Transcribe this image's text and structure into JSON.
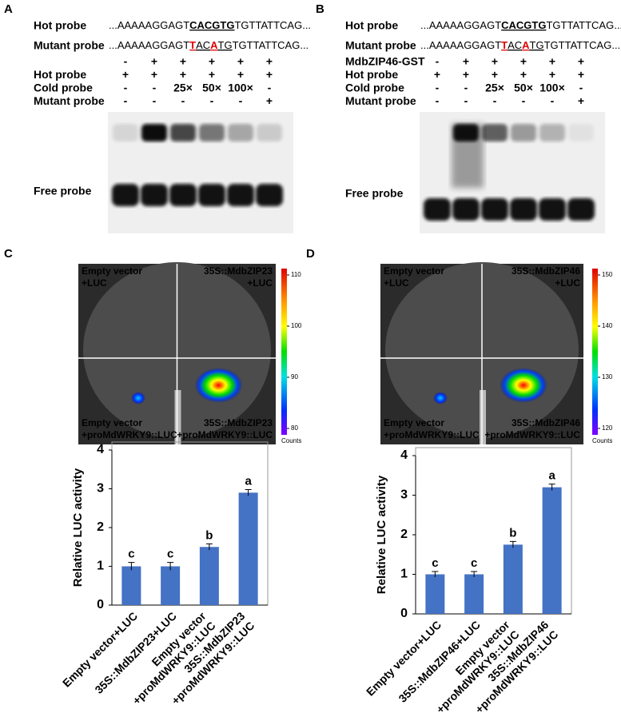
{
  "panels": [
    {
      "label": "A",
      "hot_probe_label": "Hot probe",
      "hot_sequence": [
        "...AAAAAGGAGT",
        "CACGTG",
        "TGTTATTCAG..."
      ],
      "mutant_probe_label": "Mutant probe",
      "mutant_sequence": [
        "...AAAAAGGAGT",
        "T",
        "AC",
        "A",
        "TG",
        "TGTTATTCAG..."
      ],
      "rows": [
        {
          "cells": [
            "-",
            "+",
            "+",
            "+",
            "+",
            "+"
          ]
        },
        {
          "label": "Hot probe",
          "cells": [
            "+",
            "+",
            "+",
            "+",
            "+",
            "+"
          ]
        },
        {
          "label": "Cold probe",
          "cells": [
            "-",
            "-",
            "25×",
            "50×",
            "100×",
            "-"
          ]
        },
        {
          "label": "Mutant probe",
          "cells": [
            "-",
            "-",
            "-",
            "-",
            "-",
            "+"
          ]
        }
      ],
      "free_probe_label": "Free probe"
    },
    {
      "label": "B",
      "hot_probe_label": "Hot probe",
      "hot_sequence": [
        "...AAAAAGGAGT",
        "CACGTG",
        "TGTTATTCAG..."
      ],
      "mutant_probe_label": "Mutant probe",
      "mutant_sequence": [
        "...AAAAAGGAGT",
        "T",
        "AC",
        "A",
        "TG",
        "TGTTATTCAG..."
      ],
      "rows": [
        {
          "label": "MdbZIP46-GST",
          "cells": [
            "-",
            "+",
            "+",
            "+",
            "+",
            "+"
          ]
        },
        {
          "label": "Hot probe",
          "cells": [
            "+",
            "+",
            "+",
            "+",
            "+",
            "+"
          ]
        },
        {
          "label": "Cold probe",
          "cells": [
            "-",
            "-",
            "25×",
            "50×",
            "100×",
            "-"
          ]
        },
        {
          "label": "Mutant probe",
          "cells": [
            "-",
            "-",
            "-",
            "-",
            "-",
            "+"
          ]
        }
      ],
      "free_probe_label": "Free probe"
    },
    {
      "label": "C",
      "image_labels": [
        [
          "Empty vector",
          "+LUC"
        ],
        [
          "35S::MdbZIP23",
          "+LUC"
        ],
        [
          "Empty vector",
          "+proMdWRKY9::LUC"
        ],
        [
          "35S::MdbZIP23",
          "+proMdWRKY9::LUC"
        ]
      ],
      "colorbar_ticks": [
        110,
        100,
        90,
        80
      ],
      "colorbar_unit": "Counts"
    },
    {
      "label": "D",
      "image_labels": [
        [
          "Empty vector",
          "+LUC"
        ],
        [
          "35S::MdbZIP46",
          "+LUC"
        ],
        [
          "Empty vector",
          "+proMdWRKY9::LUC"
        ],
        [
          "35S::MdbZIP46",
          "+proMdWRKY9::LUC"
        ]
      ],
      "colorbar_ticks": [
        150,
        140,
        130,
        120
      ],
      "colorbar_unit": "Counts"
    }
  ],
  "chart_data": [
    {
      "type": "bar",
      "y_label": "Relative LUC activity",
      "categories": [
        [
          "Empty vector+LUC"
        ],
        [
          "35S::MdbZIP23+LUC"
        ],
        [
          "Empty vector",
          "+proMdWRKY9::LUC"
        ],
        [
          "35S::MdbZIP23",
          "+proMdWRKY9::LUC"
        ]
      ],
      "values": [
        1.0,
        1.0,
        1.5,
        2.9
      ],
      "errors": [
        0.1,
        0.1,
        0.08,
        0.08
      ],
      "annotations": [
        "c",
        "c",
        "b",
        "a"
      ],
      "color": "#4472c4",
      "ylim": [
        0,
        4
      ],
      "yticks": [
        0,
        1,
        2,
        3,
        4
      ]
    },
    {
      "type": "bar",
      "y_label": "Relative LUC activity",
      "categories": [
        [
          "Empty vector+LUC"
        ],
        [
          "35S::MdbZIP46+LUC"
        ],
        [
          "Empty vector",
          "+proMdWRKY9::LUC"
        ],
        [
          "35S::MdbZIP46",
          "+proMdWRKY9::LUC"
        ]
      ],
      "values": [
        1.0,
        1.0,
        1.75,
        3.2
      ],
      "errors": [
        0.07,
        0.07,
        0.08,
        0.08
      ],
      "annotations": [
        "c",
        "c",
        "b",
        "a"
      ],
      "color": "#4472c4",
      "ylim": [
        0,
        4
      ],
      "yticks": [
        0,
        1,
        2,
        3,
        4
      ]
    }
  ]
}
